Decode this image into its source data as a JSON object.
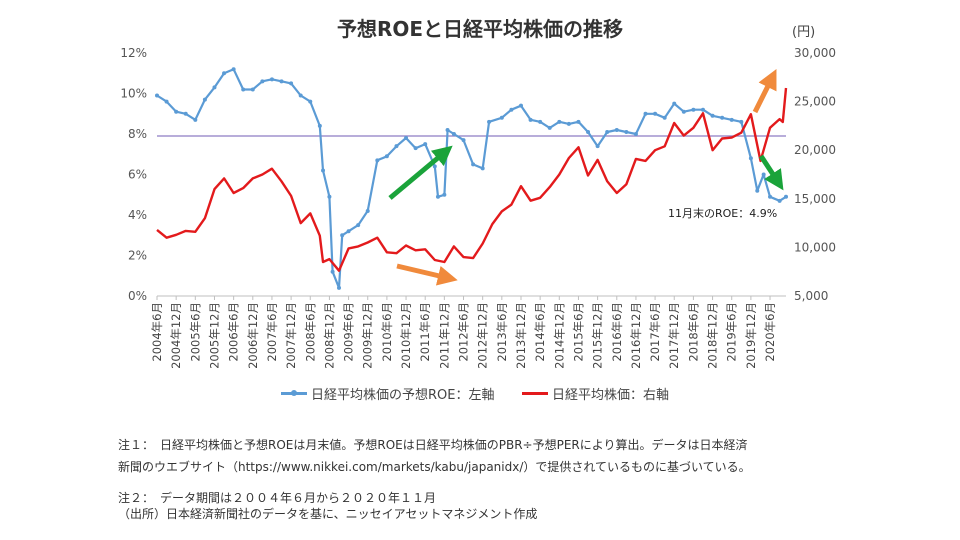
{
  "chart_data": {
    "type": "line",
    "title": "予想ROEと日経平均株価の推移",
    "right_unit": "(円)",
    "left_axis": {
      "ticks": [
        "0%",
        "2%",
        "4%",
        "6%",
        "8%",
        "10%",
        "12%"
      ],
      "values": [
        0,
        2,
        4,
        6,
        8,
        10,
        12
      ],
      "range": [
        0,
        12
      ]
    },
    "right_axis": {
      "ticks": [
        "5,000",
        "10,000",
        "15,000",
        "20,000",
        "25,000",
        "30,000"
      ],
      "values": [
        5000,
        10000,
        15000,
        20000,
        25000,
        30000
      ],
      "range": [
        5000,
        30000
      ]
    },
    "x_ticks": [
      "2004年6月",
      "2004年12月",
      "2005年6月",
      "2005年12月",
      "2006年6月",
      "2006年12月",
      "2007年6月",
      "2007年12月",
      "2008年6月",
      "2008年12月",
      "2009年6月",
      "2009年12月",
      "2010年6月",
      "2010年12月",
      "2011年6月",
      "2011年12月",
      "2012年6月",
      "2012年12月",
      "2013年6月",
      "2013年12月",
      "2014年6月",
      "2014年12月",
      "2015年6月",
      "2015年12月",
      "2016年6月",
      "2016年12月",
      "2017年6月",
      "2017年12月",
      "2018年6月",
      "2018年12月",
      "2019年6月",
      "2019年12月",
      "2020年6月"
    ],
    "x_start": "2004年6月",
    "x_end": "2020年11月",
    "reference_line": {
      "axis": "left",
      "value": 7.9,
      "color": "#8e7cc3"
    },
    "series": [
      {
        "name": "日経平均株価の予想ROE：左軸",
        "axis": "left",
        "color": "#5b9bd5",
        "marker": "circle",
        "points": [
          [
            "2004-06",
            9.9
          ],
          [
            "2004-09",
            9.6
          ],
          [
            "2004-12",
            9.1
          ],
          [
            "2005-03",
            9.0
          ],
          [
            "2005-06",
            8.7
          ],
          [
            "2005-09",
            9.7
          ],
          [
            "2005-12",
            10.3
          ],
          [
            "2006-03",
            11.0
          ],
          [
            "2006-06",
            11.2
          ],
          [
            "2006-09",
            10.2
          ],
          [
            "2006-12",
            10.2
          ],
          [
            "2007-03",
            10.6
          ],
          [
            "2007-06",
            10.7
          ],
          [
            "2007-09",
            10.6
          ],
          [
            "2007-12",
            10.5
          ],
          [
            "2008-03",
            9.9
          ],
          [
            "2008-06",
            9.6
          ],
          [
            "2008-09",
            8.4
          ],
          [
            "2008-10",
            6.2
          ],
          [
            "2008-12",
            4.9
          ],
          [
            "2009-01",
            1.2
          ],
          [
            "2009-03",
            0.4
          ],
          [
            "2009-04",
            3.0
          ],
          [
            "2009-06",
            3.2
          ],
          [
            "2009-09",
            3.5
          ],
          [
            "2009-12",
            4.2
          ],
          [
            "2010-03",
            6.7
          ],
          [
            "2010-06",
            6.9
          ],
          [
            "2010-09",
            7.4
          ],
          [
            "2010-12",
            7.8
          ],
          [
            "2011-03",
            7.3
          ],
          [
            "2011-06",
            7.5
          ],
          [
            "2011-09",
            6.4
          ],
          [
            "2011-10",
            4.9
          ],
          [
            "2011-12",
            5.0
          ],
          [
            "2012-01",
            8.2
          ],
          [
            "2012-03",
            8.0
          ],
          [
            "2012-06",
            7.7
          ],
          [
            "2012-09",
            6.5
          ],
          [
            "2012-12",
            6.3
          ],
          [
            "2013-02",
            8.6
          ],
          [
            "2013-06",
            8.8
          ],
          [
            "2013-09",
            9.2
          ],
          [
            "2013-12",
            9.4
          ],
          [
            "2014-03",
            8.7
          ],
          [
            "2014-06",
            8.6
          ],
          [
            "2014-09",
            8.3
          ],
          [
            "2014-12",
            8.6
          ],
          [
            "2015-03",
            8.5
          ],
          [
            "2015-06",
            8.6
          ],
          [
            "2015-09",
            8.1
          ],
          [
            "2015-12",
            7.4
          ],
          [
            "2016-03",
            8.1
          ],
          [
            "2016-06",
            8.2
          ],
          [
            "2016-09",
            8.1
          ],
          [
            "2016-12",
            8.0
          ],
          [
            "2017-03",
            9.0
          ],
          [
            "2017-06",
            9.0
          ],
          [
            "2017-09",
            8.8
          ],
          [
            "2017-12",
            9.5
          ],
          [
            "2018-03",
            9.1
          ],
          [
            "2018-06",
            9.2
          ],
          [
            "2018-09",
            9.2
          ],
          [
            "2018-12",
            8.9
          ],
          [
            "2019-03",
            8.8
          ],
          [
            "2019-06",
            8.7
          ],
          [
            "2019-09",
            8.6
          ],
          [
            "2019-12",
            6.8
          ],
          [
            "2020-02",
            5.2
          ],
          [
            "2020-04",
            6.0
          ],
          [
            "2020-06",
            4.9
          ],
          [
            "2020-09",
            4.7
          ],
          [
            "2020-11",
            4.9
          ]
        ]
      },
      {
        "name": "日経平均株価：右軸",
        "axis": "right",
        "color": "#e31a1c",
        "marker": "none",
        "points": [
          [
            "2004-06",
            11800
          ],
          [
            "2004-09",
            11000
          ],
          [
            "2004-12",
            11300
          ],
          [
            "2005-03",
            11700
          ],
          [
            "2005-06",
            11600
          ],
          [
            "2005-09",
            13000
          ],
          [
            "2005-12",
            16000
          ],
          [
            "2006-03",
            17100
          ],
          [
            "2006-06",
            15600
          ],
          [
            "2006-09",
            16100
          ],
          [
            "2006-12",
            17100
          ],
          [
            "2007-03",
            17500
          ],
          [
            "2007-06",
            18100
          ],
          [
            "2007-09",
            16800
          ],
          [
            "2007-12",
            15300
          ],
          [
            "2008-03",
            12500
          ],
          [
            "2008-06",
            13500
          ],
          [
            "2008-09",
            11200
          ],
          [
            "2008-10",
            8500
          ],
          [
            "2008-12",
            8800
          ],
          [
            "2009-03",
            7600
          ],
          [
            "2009-06",
            9900
          ],
          [
            "2009-09",
            10100
          ],
          [
            "2009-12",
            10500
          ],
          [
            "2010-03",
            11000
          ],
          [
            "2010-06",
            9500
          ],
          [
            "2010-09",
            9400
          ],
          [
            "2010-12",
            10200
          ],
          [
            "2011-03",
            9700
          ],
          [
            "2011-06",
            9800
          ],
          [
            "2011-09",
            8700
          ],
          [
            "2011-12",
            8500
          ],
          [
            "2012-03",
            10100
          ],
          [
            "2012-06",
            9000
          ],
          [
            "2012-09",
            8900
          ],
          [
            "2012-12",
            10400
          ],
          [
            "2013-03",
            12400
          ],
          [
            "2013-06",
            13700
          ],
          [
            "2013-09",
            14400
          ],
          [
            "2013-12",
            16300
          ],
          [
            "2014-03",
            14800
          ],
          [
            "2014-06",
            15100
          ],
          [
            "2014-09",
            16200
          ],
          [
            "2014-12",
            17500
          ],
          [
            "2015-03",
            19200
          ],
          [
            "2015-06",
            20300
          ],
          [
            "2015-09",
            17400
          ],
          [
            "2015-12",
            19000
          ],
          [
            "2016-03",
            16800
          ],
          [
            "2016-06",
            15600
          ],
          [
            "2016-09",
            16500
          ],
          [
            "2016-12",
            19100
          ],
          [
            "2017-03",
            18900
          ],
          [
            "2017-06",
            20000
          ],
          [
            "2017-09",
            20400
          ],
          [
            "2017-12",
            22800
          ],
          [
            "2018-03",
            21500
          ],
          [
            "2018-06",
            22300
          ],
          [
            "2018-09",
            23800
          ],
          [
            "2018-12",
            20000
          ],
          [
            "2019-03",
            21200
          ],
          [
            "2019-06",
            21300
          ],
          [
            "2019-09",
            21800
          ],
          [
            "2019-12",
            23700
          ],
          [
            "2020-03",
            18900
          ],
          [
            "2020-06",
            22300
          ],
          [
            "2020-09",
            23200
          ],
          [
            "2020-10",
            22900
          ],
          [
            "2020-11",
            26400
          ]
        ]
      }
    ],
    "annotation": "11月末のROE：4.9%",
    "arrows": [
      {
        "color": "#1aa33a",
        "direction": "up-right",
        "note": "ROE rise 2009-2011"
      },
      {
        "color": "#f08a3c",
        "direction": "down-right",
        "note": "index decline 2010-2011"
      },
      {
        "color": "#f08a3c",
        "direction": "up-right",
        "note": "index rise 2020"
      },
      {
        "color": "#1aa33a",
        "direction": "down-right",
        "note": "ROE fall 2020"
      }
    ]
  },
  "notes": {
    "note1_line1": "注１：　日経平均株価と予想ROEは月末値。予想ROEは日経平均株価のPBR÷予想PERにより算出。データは日本経済",
    "note1_line2": "新聞のウエブサイト（https://www.nikkei.com/markets/kabu/japanidx/）で提供されているものに基づいている。",
    "note2": "注２：　データ期間は２００４年６月から２０２０年１１月",
    "source": "（出所）日本経済新聞社のデータを基に、ニッセイアセットマネジメント作成"
  }
}
